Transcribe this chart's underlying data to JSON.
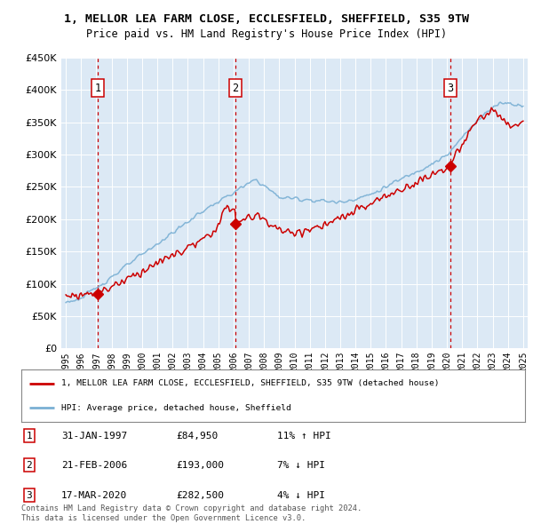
{
  "title": "1, MELLOR LEA FARM CLOSE, ECCLESFIELD, SHEFFIELD, S35 9TW",
  "subtitle": "Price paid vs. HM Land Registry's House Price Index (HPI)",
  "background_color": "#dce9f5",
  "fig_bg_color": "#ffffff",
  "red_line_color": "#cc0000",
  "blue_line_color": "#7ab0d4",
  "sale_marker_color": "#cc0000",
  "dashed_line_color": "#cc0000",
  "ylim": [
    0,
    450000
  ],
  "yticks": [
    0,
    50000,
    100000,
    150000,
    200000,
    250000,
    300000,
    350000,
    400000,
    450000
  ],
  "xlim_start": 1994.7,
  "xlim_end": 2025.3,
  "xticks": [
    1995,
    1996,
    1997,
    1998,
    1999,
    2000,
    2001,
    2002,
    2003,
    2004,
    2005,
    2006,
    2007,
    2008,
    2009,
    2010,
    2011,
    2012,
    2013,
    2014,
    2015,
    2016,
    2017,
    2018,
    2019,
    2020,
    2021,
    2022,
    2023,
    2024,
    2025
  ],
  "sales": [
    {
      "num": 1,
      "year": 1997.08,
      "price": 84950,
      "label": "1",
      "date": "31-JAN-1997",
      "pct": "11%",
      "dir": "↑"
    },
    {
      "num": 2,
      "year": 2006.13,
      "price": 193000,
      "label": "2",
      "date": "21-FEB-2006",
      "pct": "7%",
      "dir": "↓"
    },
    {
      "num": 3,
      "year": 2020.21,
      "price": 282500,
      "label": "3",
      "date": "17-MAR-2020",
      "pct": "4%",
      "dir": "↓"
    }
  ],
  "legend_line1": "1, MELLOR LEA FARM CLOSE, ECCLESFIELD, SHEFFIELD, S35 9TW (detached house)",
  "legend_line2": "HPI: Average price, detached house, Sheffield",
  "footer1": "Contains HM Land Registry data © Crown copyright and database right 2024.",
  "footer2": "This data is licensed under the Open Government Licence v3.0.",
  "table_rows": [
    [
      "1",
      "31-JAN-1997",
      "£84,950",
      "11% ↑ HPI"
    ],
    [
      "2",
      "21-FEB-2006",
      "£193,000",
      "7% ↓ HPI"
    ],
    [
      "3",
      "17-MAR-2020",
      "£282,500",
      "4% ↓ HPI"
    ]
  ]
}
